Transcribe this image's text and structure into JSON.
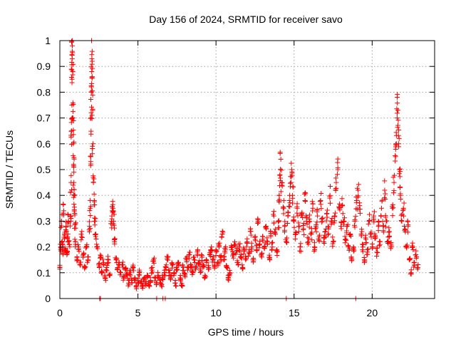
{
  "chart_data": {
    "type": "scatter",
    "title": "Day 156 of 2024, SRMTID for receiver savo",
    "xlabel": "GPS time / hours",
    "ylabel": "SRMTID / TECUs",
    "xlim": [
      0,
      24
    ],
    "ylim": [
      0,
      1
    ],
    "xticks": [
      {
        "value": 0,
        "label": "0"
      },
      {
        "value": 5,
        "label": "5"
      },
      {
        "value": 10,
        "label": "10"
      },
      {
        "value": 15,
        "label": "15"
      },
      {
        "value": 20,
        "label": "20"
      }
    ],
    "yticks": [
      {
        "value": 0,
        "label": "0"
      },
      {
        "value": 0.1,
        "label": "0.1"
      },
      {
        "value": 0.2,
        "label": "0.2"
      },
      {
        "value": 0.3,
        "label": "0.3"
      },
      {
        "value": 0.4,
        "label": "0.4"
      },
      {
        "value": 0.5,
        "label": "0.5"
      },
      {
        "value": 0.6,
        "label": "0.6"
      },
      {
        "value": 0.7,
        "label": "0.7"
      },
      {
        "value": 0.8,
        "label": "0.8"
      },
      {
        "value": 0.9,
        "label": "0.9"
      },
      {
        "value": 1,
        "label": "1"
      }
    ],
    "grid": true,
    "marker": "+",
    "series": [
      {
        "name": "SRMTID",
        "color": "#ff0000",
        "points": [
          [
            0.0,
            0.12
          ],
          [
            0.05,
            0.2
          ],
          [
            0.1,
            0.3
          ],
          [
            0.15,
            0.22
          ],
          [
            0.2,
            0.18
          ],
          [
            0.25,
            0.34
          ],
          [
            0.3,
            0.25
          ],
          [
            0.35,
            0.19
          ],
          [
            0.4,
            0.28
          ],
          [
            0.45,
            0.17
          ],
          [
            0.5,
            0.24
          ],
          [
            0.55,
            0.3
          ],
          [
            0.6,
            0.21
          ],
          [
            0.7,
            0.3
          ],
          [
            0.72,
            0.45
          ],
          [
            0.75,
            0.65
          ],
          [
            0.77,
            0.75
          ],
          [
            0.78,
            0.85
          ],
          [
            0.79,
            0.93
          ],
          [
            0.8,
            0.98
          ],
          [
            0.82,
            0.88
          ],
          [
            0.84,
            0.7
          ],
          [
            0.86,
            0.6
          ],
          [
            0.88,
            0.52
          ],
          [
            0.9,
            0.45
          ],
          [
            0.92,
            0.4
          ],
          [
            0.95,
            0.33
          ],
          [
            0.98,
            0.29
          ],
          [
            1.0,
            0.22
          ],
          [
            1.1,
            0.16
          ],
          [
            1.2,
            0.2
          ],
          [
            1.3,
            0.13
          ],
          [
            1.4,
            0.24
          ],
          [
            1.5,
            0.17
          ],
          [
            1.6,
            0.12
          ],
          [
            1.7,
            0.2
          ],
          [
            1.8,
            0.15
          ],
          [
            1.9,
            0.28
          ],
          [
            1.95,
            0.35
          ],
          [
            1.98,
            0.55
          ],
          [
            2.0,
            0.7
          ],
          [
            2.02,
            0.8
          ],
          [
            2.04,
            0.88
          ],
          [
            2.05,
            0.93
          ],
          [
            2.07,
            0.86
          ],
          [
            2.1,
            0.73
          ],
          [
            2.12,
            0.6
          ],
          [
            2.15,
            0.45
          ],
          [
            2.2,
            0.38
          ],
          [
            2.25,
            0.3
          ],
          [
            2.3,
            0.25
          ],
          [
            2.4,
            0.2
          ],
          [
            2.5,
            0.13
          ],
          [
            2.6,
            0.16
          ],
          [
            2.7,
            0.1
          ],
          [
            2.8,
            0.14
          ],
          [
            2.9,
            0.08
          ],
          [
            3.0,
            0.12
          ],
          [
            3.1,
            0.15
          ],
          [
            3.2,
            0.09
          ],
          [
            3.3,
            0.3
          ],
          [
            3.35,
            0.34
          ],
          [
            3.4,
            0.35
          ],
          [
            3.45,
            0.3
          ],
          [
            3.5,
            0.22
          ],
          [
            3.6,
            0.15
          ],
          [
            3.7,
            0.12
          ],
          [
            3.8,
            0.14
          ],
          [
            3.9,
            0.1
          ],
          [
            4.0,
            0.13
          ],
          [
            4.1,
            0.08
          ],
          [
            4.2,
            0.11
          ],
          [
            4.3,
            0.09
          ],
          [
            4.4,
            0.06
          ],
          [
            4.5,
            0.1
          ],
          [
            4.6,
            0.07
          ],
          [
            4.7,
            0.12
          ],
          [
            4.8,
            0.08
          ],
          [
            4.9,
            0.05
          ],
          [
            5.0,
            0.07
          ],
          [
            5.1,
            0.1
          ],
          [
            5.2,
            0.06
          ],
          [
            5.3,
            0.04
          ],
          [
            5.4,
            0.08
          ],
          [
            5.5,
            0.06
          ],
          [
            5.6,
            0.09
          ],
          [
            5.7,
            0.05
          ],
          [
            5.8,
            0.07
          ],
          [
            5.9,
            0.11
          ],
          [
            6.0,
            0.15
          ],
          [
            6.1,
            0.08
          ],
          [
            6.2,
            0.06
          ],
          [
            6.3,
            0.09
          ],
          [
            6.4,
            0.07
          ],
          [
            6.5,
            0.05
          ],
          [
            6.6,
            0.08
          ],
          [
            6.7,
            0.1
          ],
          [
            6.8,
            0.12
          ],
          [
            6.9,
            0.16
          ],
          [
            7.0,
            0.1
          ],
          [
            7.1,
            0.08
          ],
          [
            7.2,
            0.13
          ],
          [
            7.3,
            0.09
          ],
          [
            7.4,
            0.06
          ],
          [
            7.5,
            0.11
          ],
          [
            7.6,
            0.14
          ],
          [
            7.7,
            0.08
          ],
          [
            7.8,
            0.05
          ],
          [
            7.9,
            0.12
          ],
          [
            8.0,
            0.09
          ],
          [
            8.1,
            0.15
          ],
          [
            8.2,
            0.12
          ],
          [
            8.3,
            0.17
          ],
          [
            8.4,
            0.13
          ],
          [
            8.5,
            0.1
          ],
          [
            8.6,
            0.15
          ],
          [
            8.7,
            0.12
          ],
          [
            8.8,
            0.18
          ],
          [
            8.9,
            0.14
          ],
          [
            9.0,
            0.11
          ],
          [
            9.1,
            0.16
          ],
          [
            9.2,
            0.13
          ],
          [
            9.3,
            0.09
          ],
          [
            9.4,
            0.14
          ],
          [
            9.5,
            0.12
          ],
          [
            9.6,
            0.17
          ],
          [
            9.7,
            0.2
          ],
          [
            9.8,
            0.15
          ],
          [
            9.9,
            0.13
          ],
          [
            10.0,
            0.18
          ],
          [
            10.1,
            0.14
          ],
          [
            10.2,
            0.2
          ],
          [
            10.3,
            0.16
          ],
          [
            10.4,
            0.25
          ],
          [
            10.5,
            0.15
          ],
          [
            10.6,
            0.19
          ],
          [
            10.7,
            0.12
          ],
          [
            10.8,
            0.08
          ],
          [
            10.9,
            0.1
          ],
          [
            11.0,
            0.2
          ],
          [
            11.1,
            0.17
          ],
          [
            11.2,
            0.22
          ],
          [
            11.3,
            0.18
          ],
          [
            11.4,
            0.14
          ],
          [
            11.5,
            0.2
          ],
          [
            11.6,
            0.17
          ],
          [
            11.7,
            0.12
          ],
          [
            11.8,
            0.19
          ],
          [
            11.9,
            0.15
          ],
          [
            12.0,
            0.22
          ],
          [
            12.1,
            0.18
          ],
          [
            12.2,
            0.27
          ],
          [
            12.3,
            0.2
          ],
          [
            12.4,
            0.15
          ],
          [
            12.5,
            0.24
          ],
          [
            12.6,
            0.19
          ],
          [
            12.7,
            0.3
          ],
          [
            12.8,
            0.21
          ],
          [
            12.9,
            0.17
          ],
          [
            13.0,
            0.24
          ],
          [
            13.1,
            0.2
          ],
          [
            13.2,
            0.28
          ],
          [
            13.3,
            0.22
          ],
          [
            13.4,
            0.16
          ],
          [
            13.5,
            0.26
          ],
          [
            13.6,
            0.2
          ],
          [
            13.7,
            0.32
          ],
          [
            13.8,
            0.25
          ],
          [
            13.9,
            0.18
          ],
          [
            14.0,
            0.3
          ],
          [
            14.05,
            0.4
          ],
          [
            14.1,
            0.48
          ],
          [
            14.15,
            0.54
          ],
          [
            14.2,
            0.45
          ],
          [
            14.3,
            0.35
          ],
          [
            14.4,
            0.28
          ],
          [
            14.5,
            0.22
          ],
          [
            14.6,
            0.32
          ],
          [
            14.7,
            0.38
          ],
          [
            14.8,
            0.45
          ],
          [
            14.85,
            0.5
          ],
          [
            14.9,
            0.4
          ],
          [
            15.0,
            0.3
          ],
          [
            15.1,
            0.25
          ],
          [
            15.2,
            0.35
          ],
          [
            15.3,
            0.28
          ],
          [
            15.4,
            0.2
          ],
          [
            15.5,
            0.33
          ],
          [
            15.6,
            0.27
          ],
          [
            15.7,
            0.38
          ],
          [
            15.8,
            0.3
          ],
          [
            15.9,
            0.22
          ],
          [
            16.0,
            0.3
          ],
          [
            16.1,
            0.25
          ],
          [
            16.2,
            0.35
          ],
          [
            16.3,
            0.2
          ],
          [
            16.4,
            0.28
          ],
          [
            16.5,
            0.32
          ],
          [
            16.6,
            0.24
          ],
          [
            16.7,
            0.38
          ],
          [
            16.8,
            0.3
          ],
          [
            16.9,
            0.22
          ],
          [
            17.0,
            0.26
          ],
          [
            17.1,
            0.33
          ],
          [
            17.2,
            0.27
          ],
          [
            17.3,
            0.4
          ],
          [
            17.4,
            0.3
          ],
          [
            17.5,
            0.22
          ],
          [
            17.6,
            0.32
          ],
          [
            17.7,
            0.45
          ],
          [
            17.8,
            0.5
          ],
          [
            17.9,
            0.35
          ],
          [
            18.0,
            0.28
          ],
          [
            18.1,
            0.36
          ],
          [
            18.2,
            0.3
          ],
          [
            18.3,
            0.23
          ],
          [
            18.4,
            0.28
          ],
          [
            18.5,
            0.2
          ],
          [
            18.6,
            0.25
          ],
          [
            18.7,
            0.15
          ],
          [
            18.8,
            0.2
          ],
          [
            18.9,
            0.3
          ],
          [
            19.0,
            0.38
          ],
          [
            19.1,
            0.42
          ],
          [
            19.2,
            0.36
          ],
          [
            19.3,
            0.25
          ],
          [
            19.4,
            0.2
          ],
          [
            19.5,
            0.15
          ],
          [
            19.6,
            0.23
          ],
          [
            19.7,
            0.18
          ],
          [
            19.8,
            0.3
          ],
          [
            19.9,
            0.25
          ],
          [
            20.0,
            0.2
          ],
          [
            20.1,
            0.32
          ],
          [
            20.2,
            0.24
          ],
          [
            20.3,
            0.18
          ],
          [
            20.4,
            0.28
          ],
          [
            20.5,
            0.22
          ],
          [
            20.6,
            0.35
          ],
          [
            20.7,
            0.28
          ],
          [
            20.8,
            0.42
          ],
          [
            20.9,
            0.3
          ],
          [
            21.0,
            0.22
          ],
          [
            21.1,
            0.26
          ],
          [
            21.2,
            0.2
          ],
          [
            21.3,
            0.35
          ],
          [
            21.4,
            0.45
          ],
          [
            21.5,
            0.55
          ],
          [
            21.55,
            0.6
          ],
          [
            21.6,
            0.7
          ],
          [
            21.65,
            0.73
          ],
          [
            21.7,
            0.6
          ],
          [
            21.75,
            0.5
          ],
          [
            21.8,
            0.4
          ],
          [
            21.9,
            0.3
          ],
          [
            22.0,
            0.35
          ],
          [
            22.1,
            0.27
          ],
          [
            22.2,
            0.2
          ],
          [
            22.3,
            0.28
          ],
          [
            22.4,
            0.15
          ],
          [
            22.5,
            0.1
          ],
          [
            22.6,
            0.2
          ],
          [
            22.7,
            0.13
          ],
          [
            22.8,
            0.17
          ],
          [
            22.9,
            0.12
          ]
        ],
        "zero_points": [
          2.55,
          2.6,
          6.2,
          6.6,
          6.75,
          14.5,
          18.95
        ]
      }
    ]
  }
}
